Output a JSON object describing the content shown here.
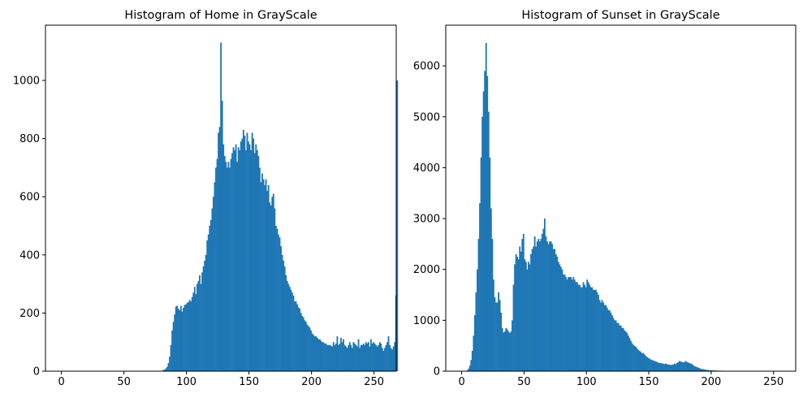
{
  "chart_data": [
    {
      "type": "bar",
      "title": "Histogram of Home in GrayScale",
      "xlabel": "",
      "ylabel": "",
      "bar_color": "#1f77b4",
      "xlim": [
        -12.75,
        267.75
      ],
      "ylim": [
        0,
        1190
      ],
      "xticks": [
        0,
        50,
        100,
        150,
        200,
        250
      ],
      "yticks": [
        0,
        200,
        400,
        600,
        800,
        1000
      ],
      "grid": false,
      "bin_start": 0,
      "bin_width": 1,
      "values": [
        0,
        0,
        0,
        0,
        0,
        0,
        0,
        0,
        0,
        0,
        0,
        0,
        0,
        0,
        0,
        0,
        0,
        0,
        0,
        0,
        0,
        0,
        0,
        0,
        0,
        0,
        0,
        0,
        0,
        0,
        0,
        0,
        0,
        0,
        0,
        0,
        0,
        0,
        0,
        0,
        0,
        0,
        0,
        0,
        0,
        0,
        0,
        0,
        0,
        0,
        0,
        0,
        0,
        0,
        0,
        0,
        0,
        0,
        0,
        0,
        0,
        0,
        0,
        0,
        0,
        0,
        0,
        0,
        0,
        0,
        0,
        0,
        0,
        0,
        0,
        0,
        0,
        0,
        0,
        0,
        0,
        5,
        5,
        10,
        15,
        28,
        50,
        90,
        140,
        170,
        195,
        222,
        225,
        215,
        210,
        225,
        205,
        218,
        228,
        230,
        235,
        238,
        245,
        240,
        255,
        270,
        290,
        265,
        300,
        310,
        330,
        300,
        340,
        360,
        380,
        400,
        450,
        470,
        500,
        520,
        560,
        600,
        650,
        700,
        730,
        820,
        840,
        1130,
        930,
        780,
        740,
        720,
        700,
        720,
        700,
        730,
        750,
        770,
        760,
        780,
        720,
        770,
        760,
        790,
        800,
        830,
        810,
        760,
        820,
        790,
        780,
        760,
        820,
        800,
        750,
        780,
        760,
        740,
        700,
        650,
        680,
        660,
        640,
        660,
        620,
        640,
        580,
        570,
        600,
        610,
        560,
        500,
        490,
        470,
        460,
        430,
        400,
        380,
        360,
        330,
        310,
        300,
        290,
        280,
        270,
        260,
        240,
        240,
        230,
        220,
        215,
        200,
        190,
        185,
        175,
        170,
        160,
        155,
        150,
        140,
        130,
        125,
        120,
        120,
        115,
        110,
        110,
        105,
        100,
        100,
        95,
        95,
        90,
        90,
        90,
        88,
        85,
        100,
        90,
        95,
        120,
        90,
        95,
        115,
        100,
        110,
        90,
        85,
        80,
        90,
        100,
        90,
        80,
        100,
        95,
        90,
        85,
        110,
        80,
        90,
        90,
        95,
        90,
        100,
        95,
        100,
        85,
        110,
        95,
        100,
        95,
        90,
        85,
        90,
        100,
        95,
        80,
        70,
        80,
        90,
        100,
        120,
        90,
        80,
        75,
        85,
        100,
        260,
        1000
      ]
    },
    {
      "type": "bar",
      "title": "Histogram of Sunset in GrayScale",
      "xlabel": "",
      "ylabel": "",
      "bar_color": "#1f77b4",
      "xlim": [
        -12.75,
        267.75
      ],
      "ylim": [
        0,
        6800
      ],
      "xticks": [
        0,
        50,
        100,
        150,
        200,
        250
      ],
      "yticks": [
        0,
        1000,
        2000,
        3000,
        4000,
        5000,
        6000
      ],
      "grid": false,
      "bin_start": 0,
      "bin_width": 1,
      "values": [
        0,
        0,
        0,
        0,
        20,
        50,
        110,
        220,
        400,
        700,
        1100,
        1550,
        2000,
        2600,
        3300,
        4200,
        5000,
        5500,
        5900,
        6450,
        5800,
        5100,
        4200,
        3200,
        2600,
        1800,
        1450,
        1350,
        1350,
        1550,
        1400,
        1150,
        850,
        760,
        780,
        850,
        820,
        780,
        750,
        780,
        1000,
        1700,
        2100,
        2300,
        2250,
        2200,
        2450,
        2350,
        2600,
        2700,
        2200,
        2150,
        2000,
        2150,
        2100,
        2300,
        2400,
        2450,
        2650,
        2450,
        2550,
        2600,
        2550,
        2600,
        2700,
        2800,
        3000,
        2650,
        2550,
        2500,
        2550,
        2550,
        2500,
        2400,
        2400,
        2300,
        2250,
        2150,
        2100,
        2050,
        2000,
        1900,
        1900,
        1850,
        1800,
        1850,
        1850,
        1850,
        1800,
        1850,
        1800,
        1750,
        1750,
        1700,
        1700,
        1650,
        1650,
        1750,
        1700,
        1650,
        1800,
        1750,
        1700,
        1650,
        1650,
        1600,
        1600,
        1600,
        1550,
        1500,
        1400,
        1350,
        1400,
        1350,
        1300,
        1300,
        1250,
        1200,
        1200,
        1150,
        1100,
        1050,
        1000,
        1000,
        950,
        950,
        900,
        900,
        850,
        850,
        800,
        780,
        750,
        700,
        650,
        600,
        550,
        520,
        500,
        480,
        450,
        420,
        400,
        380,
        350,
        360,
        330,
        300,
        280,
        260,
        250,
        230,
        220,
        210,
        200,
        190,
        180,
        170,
        160,
        160,
        150,
        150,
        140,
        150,
        140,
        130,
        130,
        120,
        130,
        130,
        150,
        140,
        160,
        180,
        200,
        190,
        180,
        170,
        180,
        200,
        180,
        170,
        160,
        150,
        140,
        120,
        100,
        90,
        80,
        70,
        60,
        50,
        45,
        40,
        35,
        30,
        25,
        25,
        20,
        20,
        18,
        15,
        15,
        12,
        12,
        10,
        10,
        10,
        8,
        8,
        6,
        6,
        5,
        5,
        4,
        4,
        3,
        3,
        2,
        2,
        2,
        1,
        1,
        1,
        0,
        0,
        0,
        0,
        0,
        0,
        0,
        0,
        0,
        0,
        0,
        0,
        0,
        0,
        0,
        0,
        0,
        0,
        0,
        0,
        0,
        0,
        0,
        0,
        0,
        0,
        0,
        0,
        0,
        0,
        0,
        0,
        0,
        0,
        0,
        0,
        0,
        0,
        0,
        0,
        0,
        0
      ]
    }
  ]
}
